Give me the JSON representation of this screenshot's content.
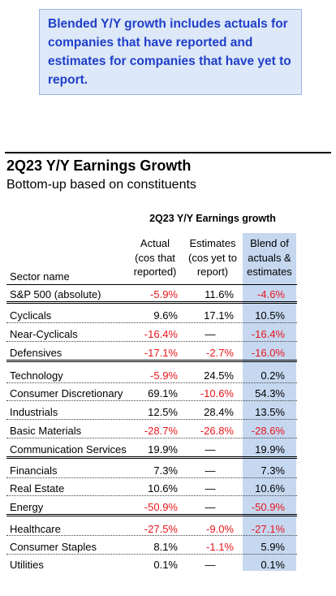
{
  "callout": {
    "text": "Blended Y/Y growth includes actuals for companies that have reported and estimates for companies that have yet to report."
  },
  "table": {
    "title": "2Q23 Y/Y Earnings Growth",
    "subtitle": "Bottom-up based on constituents",
    "group_header": "2Q23 Y/Y Earnings growth",
    "col_sector": "Sector name",
    "col_actual": [
      "Actual",
      "(cos that",
      "reported)"
    ],
    "col_estimates": [
      "Estimates",
      "(cos yet to",
      "report)"
    ],
    "col_blend": [
      "Blend of",
      "actuals &",
      "estimates"
    ]
  },
  "colors": {
    "negative": "#e8151b",
    "blend_highlight": "#c6d8f0",
    "callout_text": "#1f3fc9",
    "callout_bg": "#dde8f8"
  },
  "chart_data": {
    "type": "table",
    "columns": [
      "Sector name",
      "Actual (cos that reported)",
      "Estimates (cos yet to report)",
      "Blend of actuals & estimates"
    ],
    "rows": [
      {
        "sector": "S&P 500 (absolute)",
        "actual": "-5.9%",
        "estimates": "11.6%",
        "blend": "-4.6%"
      },
      {
        "sector": "Cyclicals",
        "actual": "9.6%",
        "estimates": "17.1%",
        "blend": "10.5%"
      },
      {
        "sector": "Near-Cyclicals",
        "actual": "-16.4%",
        "estimates": "—",
        "blend": "-16.4%"
      },
      {
        "sector": "Defensives",
        "actual": "-17.1%",
        "estimates": "-2.7%",
        "blend": "-16.0%"
      },
      {
        "sector": "Technology",
        "actual": "-5.9%",
        "estimates": "24.5%",
        "blend": "0.2%"
      },
      {
        "sector": "Consumer Discretionary",
        "actual": "69.1%",
        "estimates": "-10.6%",
        "blend": "54.3%"
      },
      {
        "sector": "Industrials",
        "actual": "12.5%",
        "estimates": "28.4%",
        "blend": "13.5%"
      },
      {
        "sector": "Basic Materials",
        "actual": "-28.7%",
        "estimates": "-26.8%",
        "blend": "-28.6%"
      },
      {
        "sector": "Communication Services",
        "actual": "19.9%",
        "estimates": "—",
        "blend": "19.9%"
      },
      {
        "sector": "Financials",
        "actual": "7.3%",
        "estimates": "—",
        "blend": "7.3%"
      },
      {
        "sector": "Real Estate",
        "actual": "10.6%",
        "estimates": "—",
        "blend": "10.6%"
      },
      {
        "sector": "Energy",
        "actual": "-50.9%",
        "estimates": "—",
        "blend": "-50.9%"
      },
      {
        "sector": "Healthcare",
        "actual": "-27.5%",
        "estimates": "-9.0%",
        "blend": "-27.1%"
      },
      {
        "sector": "Consumer Staples",
        "actual": "8.1%",
        "estimates": "-1.1%",
        "blend": "5.9%"
      },
      {
        "sector": "Utilities",
        "actual": "0.1%",
        "estimates": "—",
        "blend": "0.1%"
      }
    ]
  }
}
